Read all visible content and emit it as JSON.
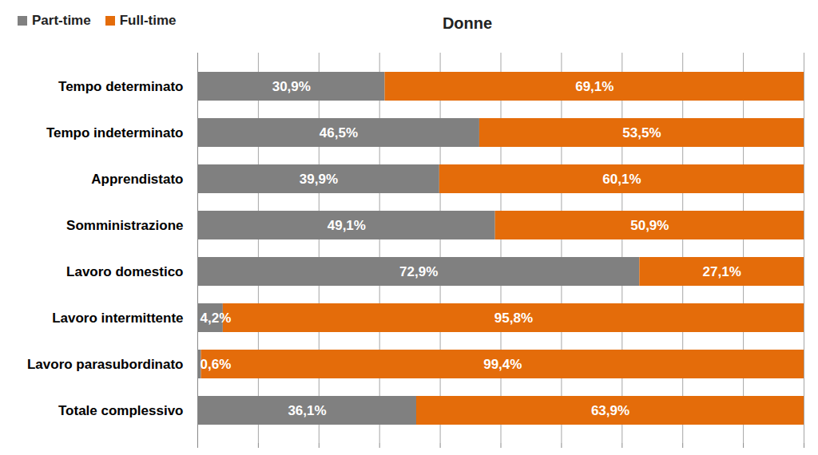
{
  "chart_data": {
    "type": "bar",
    "title": "Donne",
    "orientation": "horizontal",
    "stacked": true,
    "data_labels": true,
    "grid": true,
    "legend": "top-left",
    "tick_labels": "y",
    "categories": [
      "Tempo determinato",
      "Tempo indeterminato",
      "Apprendistato",
      "Somministrazione",
      "Lavoro domestico",
      "Lavoro intermittente",
      "Lavoro parasubordinato",
      "Totale complessivo"
    ],
    "series": [
      {
        "name": "Part-time",
        "color": "#808080",
        "values": [
          30.9,
          46.5,
          39.9,
          49.1,
          72.9,
          4.2,
          0.6,
          36.1
        ],
        "value_labels": [
          "30,9%",
          "46,5%",
          "39,9%",
          "49,1%",
          "72,9%",
          "4,2%",
          "0,6%",
          "36,1%"
        ]
      },
      {
        "name": "Full-time",
        "color": "#E46C0A",
        "values": [
          69.1,
          53.5,
          60.1,
          50.9,
          27.1,
          95.8,
          99.4,
          63.9
        ],
        "value_labels": [
          "69,1%",
          "53,5%",
          "60,1%",
          "50,9%",
          "27,1%",
          "95,8%",
          "99,4%",
          "63,9%"
        ]
      }
    ],
    "xlim": [
      0,
      100
    ],
    "xticks": [
      0,
      10,
      20,
      30,
      40,
      50,
      60,
      70,
      80,
      90,
      100
    ]
  }
}
